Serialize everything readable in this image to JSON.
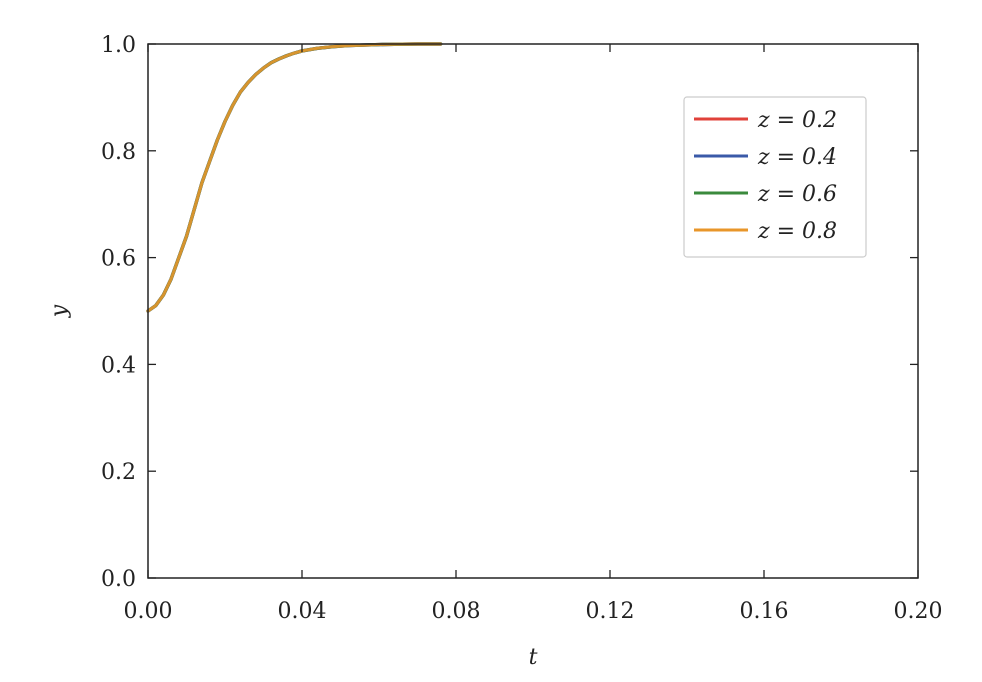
{
  "chart_data": {
    "type": "line",
    "title": "",
    "xlabel": "t",
    "ylabel": "y",
    "xlim": [
      0.0,
      0.2
    ],
    "ylim": [
      0.0,
      1.0
    ],
    "xticks": [
      "0.00",
      "0.04",
      "0.08",
      "0.12",
      "0.16",
      "0.20"
    ],
    "yticks": [
      "0.0",
      "0.2",
      "0.4",
      "0.6",
      "0.8",
      "1.0"
    ],
    "grid": false,
    "legend_position": "top-right",
    "x": [
      0.0,
      0.002,
      0.004,
      0.006,
      0.008,
      0.01,
      0.012,
      0.014,
      0.016,
      0.018,
      0.02,
      0.022,
      0.024,
      0.026,
      0.028,
      0.03,
      0.032,
      0.034,
      0.036,
      0.038,
      0.04,
      0.044,
      0.048,
      0.052,
      0.056,
      0.06,
      0.064,
      0.07,
      0.076
    ],
    "series": [
      {
        "name": "z = 0.2",
        "color": "#e0413a",
        "values": [
          0.5,
          0.51,
          0.53,
          0.56,
          0.6,
          0.64,
          0.69,
          0.74,
          0.78,
          0.82,
          0.855,
          0.885,
          0.91,
          0.928,
          0.943,
          0.955,
          0.965,
          0.972,
          0.978,
          0.983,
          0.987,
          0.992,
          0.995,
          0.997,
          0.998,
          0.999,
          0.9995,
          1.0,
          1.0
        ]
      },
      {
        "name": "z = 0.4",
        "color": "#3a5aa8",
        "values": [
          0.5,
          0.51,
          0.53,
          0.56,
          0.6,
          0.64,
          0.69,
          0.74,
          0.78,
          0.82,
          0.855,
          0.885,
          0.91,
          0.928,
          0.943,
          0.955,
          0.965,
          0.972,
          0.978,
          0.983,
          0.987,
          0.992,
          0.995,
          0.997,
          0.998,
          0.999,
          0.9995,
          1.0,
          1.0
        ]
      },
      {
        "name": "z = 0.6",
        "color": "#3a8a3c",
        "values": [
          0.5,
          0.51,
          0.53,
          0.56,
          0.6,
          0.64,
          0.69,
          0.74,
          0.78,
          0.82,
          0.855,
          0.885,
          0.91,
          0.928,
          0.943,
          0.955,
          0.965,
          0.972,
          0.978,
          0.983,
          0.987,
          0.992,
          0.995,
          0.997,
          0.998,
          0.999,
          0.9995,
          1.0,
          1.0
        ]
      },
      {
        "name": "z = 0.8",
        "color": "#e8962a",
        "values": [
          0.5,
          0.51,
          0.53,
          0.56,
          0.6,
          0.64,
          0.69,
          0.74,
          0.78,
          0.82,
          0.855,
          0.885,
          0.91,
          0.928,
          0.943,
          0.955,
          0.965,
          0.972,
          0.978,
          0.983,
          0.987,
          0.992,
          0.995,
          0.997,
          0.998,
          0.999,
          0.9995,
          1.0,
          1.0
        ]
      }
    ]
  }
}
